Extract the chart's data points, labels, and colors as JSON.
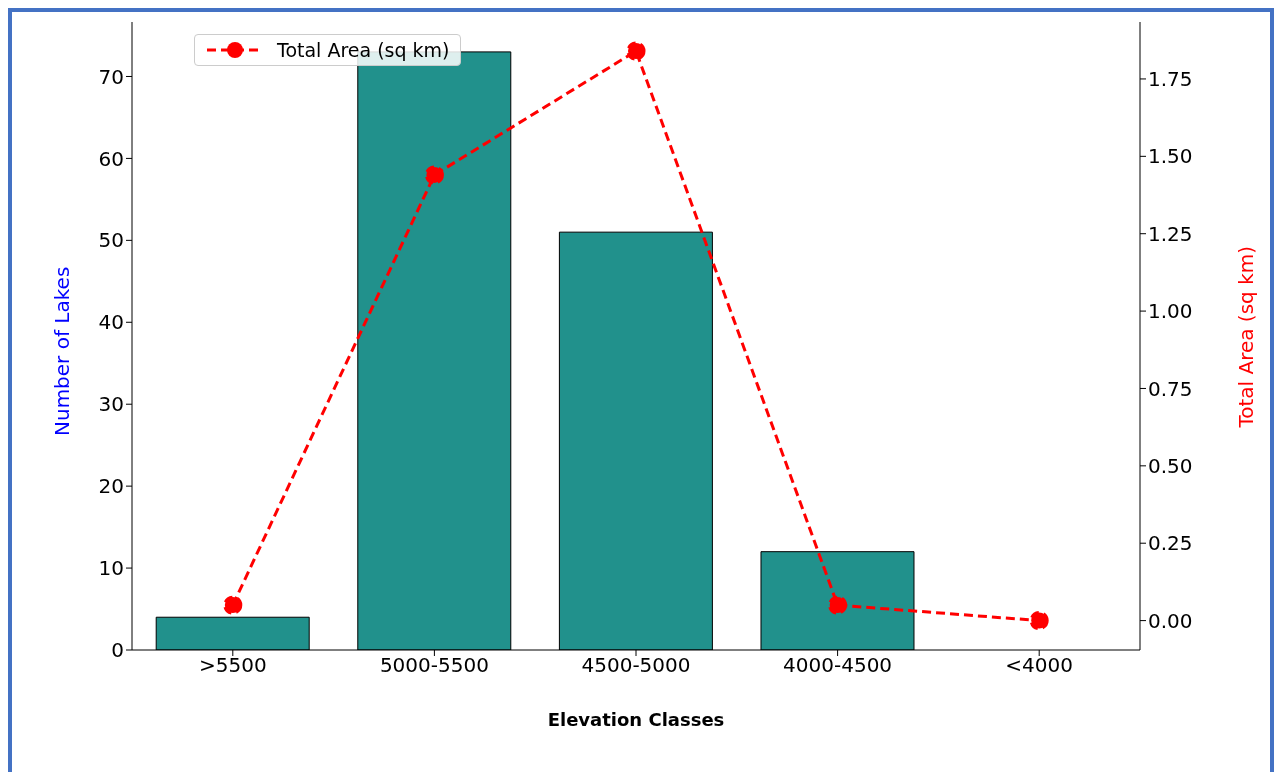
{
  "chart_data": {
    "type": "bar",
    "xlabel": "Elevation Classes",
    "ylabel": "Number of Lakes",
    "y2label": "Total Area (sq km)",
    "categories": [
      ">5500",
      "5000-5500",
      "4500-5000",
      "4000-4500",
      "<4000"
    ],
    "series": [
      {
        "color": "#21918c",
        "values": [
          4,
          73,
          51,
          12,
          0
        ]
      },
      {
        "type": "line",
        "name": "Total Area (sq km)",
        "color": "#ff0000",
        "axis": "y2",
        "values": [
          0.05,
          1.44,
          1.84,
          0.05,
          0.0
        ],
        "marker": "circle",
        "line_style": "dashed"
      }
    ],
    "ylim": [
      0,
      76.65
    ],
    "yticks": [
      0,
      10,
      20,
      30,
      40,
      50,
      60,
      70
    ],
    "y2lim": [
      -0.095,
      1.934
    ],
    "y2ticks": [
      {
        "value": 0,
        "label": "0.00"
      },
      {
        "value": 0.25,
        "label": "0.25"
      },
      {
        "value": 0.5,
        "label": "0.50"
      },
      {
        "value": 0.75,
        "label": "0.75"
      },
      {
        "value": 1,
        "label": "1.00"
      },
      {
        "value": 1.25,
        "label": "1.25"
      },
      {
        "value": 1.5,
        "label": "1.50"
      },
      {
        "value": 1.75,
        "label": "1.75"
      }
    ],
    "grid": false,
    "legend": "top left"
  }
}
